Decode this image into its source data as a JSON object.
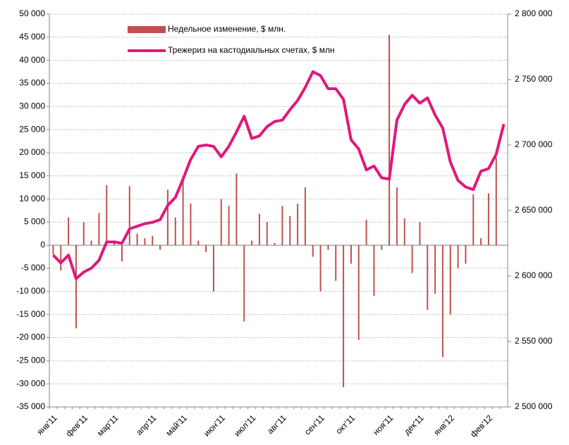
{
  "chart_data": {
    "type": "bar_line",
    "categories": [
      "янв'11",
      null,
      null,
      null,
      "фев'11",
      null,
      null,
      null,
      "мар'11",
      null,
      null,
      null,
      null,
      "апр'11",
      null,
      null,
      null,
      "май'11",
      null,
      null,
      null,
      null,
      "июн'11",
      null,
      null,
      null,
      "июл'11",
      null,
      null,
      null,
      "авг'11",
      null,
      null,
      null,
      null,
      "сен'11",
      null,
      null,
      null,
      "окт'11",
      null,
      null,
      null,
      null,
      "ноя'11",
      null,
      null,
      null,
      "дек'11",
      null,
      null,
      null,
      "янв'12",
      null,
      null,
      null,
      null,
      "фев'12",
      null,
      null
    ],
    "series": [
      {
        "name": "Недельное изменение, $ млн.",
        "color": "#c0504d",
        "type": "bar",
        "values": [
          -2000,
          -5500,
          6000,
          -18000,
          5000,
          1000,
          7000,
          13000,
          1000,
          -3500,
          12800,
          2500,
          1500,
          2000,
          -1000,
          12000,
          6000,
          15000,
          9000,
          1000,
          -1500,
          -10000,
          10000,
          8500,
          15500,
          -16500,
          1000,
          6800,
          5000,
          500,
          8500,
          6300,
          9000,
          12500,
          -2500,
          -10000,
          -1000,
          -7700,
          -30700,
          -4000,
          -20500,
          5500,
          -11000,
          -1000,
          45500,
          12500,
          5800,
          -6000,
          5000,
          -14000,
          -10500,
          -24200,
          -15000,
          -5000,
          -4000,
          11000,
          1500,
          11200,
          19000,
          0
        ]
      },
      {
        "name": "Трежериз на кастодиальных счетах, $ млн",
        "color": "#e0197a",
        "type": "line",
        "axis": "y2",
        "values": [
          2616000,
          2610000,
          2616000,
          2598000,
          2603000,
          2606000,
          2612000,
          2626000,
          2626000,
          2625000,
          2636000,
          2638000,
          2640000,
          2641000,
          2643000,
          2654000,
          2660000,
          2674000,
          2689000,
          2699000,
          2700000,
          2699000,
          2691000,
          2699000,
          2710000,
          2722000,
          2705000,
          2707000,
          2714000,
          2718000,
          2719000,
          2727000,
          2734000,
          2744000,
          2756000,
          2753000,
          2743000,
          2743000,
          2735000,
          2704000,
          2697000,
          2681000,
          2684000,
          2675000,
          2674000,
          2719000,
          2731000,
          2738000,
          2732000,
          2736000,
          2723000,
          2713000,
          2687000,
          2673000,
          2668000,
          2666000,
          2680000,
          2682000,
          2693000,
          2716000
        ]
      }
    ],
    "ylim": [
      -35000,
      50000
    ],
    "yticks": [
      {
        "value": -35000,
        "label": "-35 000"
      },
      {
        "value": -30000,
        "label": "-30 000"
      },
      {
        "value": -25000,
        "label": "-25 000"
      },
      {
        "value": -20000,
        "label": "-20 000"
      },
      {
        "value": -15000,
        "label": "-15 000"
      },
      {
        "value": -10000,
        "label": "-10 000"
      },
      {
        "value": -5000,
        "label": "-5 000"
      },
      0,
      {
        "value": 5000,
        "label": "5 000"
      },
      {
        "value": 10000,
        "label": "10 000"
      },
      {
        "value": 15000,
        "label": "15 000"
      },
      {
        "value": 20000,
        "label": "20 000"
      },
      {
        "value": 25000,
        "label": "25 000"
      },
      {
        "value": 30000,
        "label": "30 000"
      },
      {
        "value": 35000,
        "label": "35 000"
      },
      {
        "value": 40000,
        "label": "40 000"
      },
      {
        "value": 45000,
        "label": "45 000"
      },
      {
        "value": 50000,
        "label": "50 000"
      }
    ],
    "y2lim": [
      2500000,
      2800000
    ],
    "y2ticks": [
      {
        "value": 2500000,
        "label": "2 500 000"
      },
      {
        "value": 2550000,
        "label": "2 550 000"
      },
      {
        "value": 2600000,
        "label": "2 600 000"
      },
      {
        "value": 2650000,
        "label": "2 650 000"
      },
      {
        "value": 2700000,
        "label": "2 700 000"
      },
      {
        "value": 2750000,
        "label": "2 750 000"
      },
      {
        "value": 2800000,
        "label": "2 800 000"
      }
    ],
    "grid": true
  }
}
